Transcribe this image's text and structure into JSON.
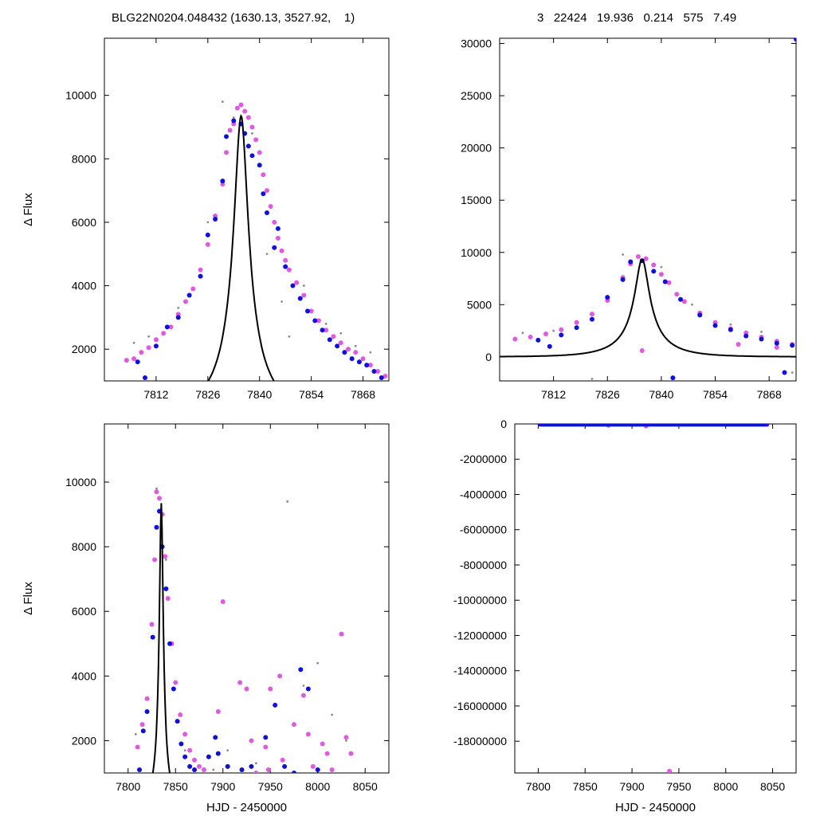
{
  "header": {
    "left": "BLG22N0204.048432 (1630.13, 3527.92,    1)",
    "right": "3   22424   19.936   0.214   575   7.49"
  },
  "colors": {
    "magenta": "#e05ae0",
    "blue": "#1010d8",
    "gray": "#8c8c8c",
    "model": "#000000"
  },
  "model_params": {
    "t0": 7835.0,
    "peak": 9350,
    "tE": 12.0,
    "u0": 0.155,
    "baseline_amp": 0
  },
  "chart_data": [
    {
      "id": "top-left",
      "type": "scatter",
      "title": "",
      "xlabel": "",
      "ylabel": "Δ Flux",
      "xlim": [
        7798,
        7875
      ],
      "ylim": [
        1000,
        11800
      ],
      "xticks": [
        "7812",
        "7826",
        "7840",
        "7854",
        "7868"
      ],
      "yticks": [
        "2000",
        "4000",
        "6000",
        "8000",
        "10000"
      ],
      "series": [
        {
          "color": "magenta",
          "points": [
            [
              7804,
              1650
            ],
            [
              7806,
              1700
            ],
            [
              7808,
              1900
            ],
            [
              7810,
              2050
            ],
            [
              7812,
              2300
            ],
            [
              7814,
              2500
            ],
            [
              7816,
              2700
            ],
            [
              7818,
              3100
            ],
            [
              7820,
              3500
            ],
            [
              7822,
              3900
            ],
            [
              7824,
              4500
            ],
            [
              7826,
              5300
            ],
            [
              7828,
              6200
            ],
            [
              7830,
              7200
            ],
            [
              7831,
              8200
            ],
            [
              7832,
              8900
            ],
            [
              7833,
              9100
            ],
            [
              7834,
              9600
            ],
            [
              7835,
              9700
            ],
            [
              7836,
              9500
            ],
            [
              7837,
              9300
            ],
            [
              7838,
              9000
            ],
            [
              7839,
              8600
            ],
            [
              7840,
              8200
            ],
            [
              7841,
              7500
            ],
            [
              7842,
              7000
            ],
            [
              7843,
              6500
            ],
            [
              7844,
              6000
            ],
            [
              7845,
              5500
            ],
            [
              7846,
              5100
            ],
            [
              7847,
              4800
            ],
            [
              7848,
              4500
            ],
            [
              7850,
              4100
            ],
            [
              7852,
              3700
            ],
            [
              7854,
              3200
            ],
            [
              7856,
              2900
            ],
            [
              7858,
              2600
            ],
            [
              7860,
              2400
            ],
            [
              7862,
              2200
            ],
            [
              7864,
              2000
            ],
            [
              7866,
              1900
            ],
            [
              7868,
              1700
            ],
            [
              7870,
              1500
            ],
            [
              7872,
              1300
            ],
            [
              7874,
              1150
            ]
          ]
        },
        {
          "color": "blue",
          "points": [
            [
              7807,
              1600
            ],
            [
              7809,
              1100
            ],
            [
              7812,
              2100
            ],
            [
              7815,
              2700
            ],
            [
              7818,
              3000
            ],
            [
              7821,
              3700
            ],
            [
              7824,
              4300
            ],
            [
              7826,
              5600
            ],
            [
              7828,
              6100
            ],
            [
              7830,
              7300
            ],
            [
              7831,
              8700
            ],
            [
              7833,
              9200
            ],
            [
              7835,
              9100
            ],
            [
              7836,
              8800
            ],
            [
              7837,
              8400
            ],
            [
              7838,
              8100
            ],
            [
              7840,
              7800
            ],
            [
              7841,
              6900
            ],
            [
              7842,
              6300
            ],
            [
              7844,
              5200
            ],
            [
              7845,
              5800
            ],
            [
              7847,
              4600
            ],
            [
              7849,
              4000
            ],
            [
              7851,
              3600
            ],
            [
              7853,
              3200
            ],
            [
              7855,
              2900
            ],
            [
              7857,
              2600
            ],
            [
              7859,
              2300
            ],
            [
              7861,
              2100
            ],
            [
              7863,
              1900
            ],
            [
              7865,
              1700
            ],
            [
              7867,
              1600
            ],
            [
              7869,
              1500
            ],
            [
              7871,
              1300
            ],
            [
              7873,
              1100
            ]
          ]
        },
        {
          "color": "gray",
          "points": [
            [
              7806,
              2200
            ],
            [
              7810,
              2400
            ],
            [
              7818,
              3300
            ],
            [
              7826,
              6000
            ],
            [
              7830,
              9800
            ],
            [
              7833,
              9300
            ],
            [
              7838,
              8800
            ],
            [
              7842,
              5000
            ],
            [
              7846,
              3500
            ],
            [
              7848,
              2400
            ],
            [
              7852,
              4000
            ],
            [
              7858,
              2800
            ],
            [
              7862,
              2500
            ],
            [
              7866,
              2100
            ],
            [
              7870,
              1900
            ]
          ]
        }
      ]
    },
    {
      "id": "top-right",
      "type": "scatter",
      "title": "",
      "xlabel": "",
      "ylabel": "",
      "xlim": [
        7798,
        7875
      ],
      "ylim": [
        -2300,
        30500
      ],
      "xticks": [
        "7812",
        "7826",
        "7840",
        "7854",
        "7868"
      ],
      "yticks": [
        "0",
        "5000",
        "10000",
        "15000",
        "20000",
        "25000",
        "30000"
      ],
      "series": [
        {
          "color": "magenta",
          "points": [
            [
              7802,
              1700
            ],
            [
              7806,
              1900
            ],
            [
              7810,
              2200
            ],
            [
              7814,
              2600
            ],
            [
              7818,
              3300
            ],
            [
              7822,
              4100
            ],
            [
              7826,
              5400
            ],
            [
              7830,
              7600
            ],
            [
              7832,
              8900
            ],
            [
              7834,
              9600
            ],
            [
              7836,
              9400
            ],
            [
              7838,
              8800
            ],
            [
              7840,
              7900
            ],
            [
              7842,
              7100
            ],
            [
              7844,
              6000
            ],
            [
              7846,
              5300
            ],
            [
              7850,
              4200
            ],
            [
              7854,
              3300
            ],
            [
              7858,
              2700
            ],
            [
              7862,
              2300
            ],
            [
              7866,
              1900
            ],
            [
              7870,
              1500
            ],
            [
              7874,
              1200
            ],
            [
              7835,
              600
            ],
            [
              7860,
              1200
            ],
            [
              7870,
              900
            ]
          ]
        },
        {
          "color": "blue",
          "points": [
            [
              7808,
              1600
            ],
            [
              7811,
              1000
            ],
            [
              7814,
              2100
            ],
            [
              7818,
              2800
            ],
            [
              7822,
              3600
            ],
            [
              7826,
              5700
            ],
            [
              7830,
              7400
            ],
            [
              7832,
              9100
            ],
            [
              7835,
              9200
            ],
            [
              7838,
              8200
            ],
            [
              7841,
              7200
            ],
            [
              7843,
              -2000
            ],
            [
              7845,
              5500
            ],
            [
              7850,
              4000
            ],
            [
              7854,
              3000
            ],
            [
              7858,
              2600
            ],
            [
              7862,
              2000
            ],
            [
              7866,
              1700
            ],
            [
              7870,
              1300
            ],
            [
              7872,
              -1500
            ],
            [
              7874,
              1100
            ]
          ]
        },
        {
          "color": "gray",
          "points": [
            [
              7804,
              2300
            ],
            [
              7812,
              2500
            ],
            [
              7822,
              -2100
            ],
            [
              7830,
              9800
            ],
            [
              7840,
              8600
            ],
            [
              7848,
              5000
            ],
            [
              7858,
              3100
            ],
            [
              7866,
              2400
            ],
            [
              7874,
              -1500
            ]
          ]
        },
        {
          "color": "blue",
          "points": [
            [
              7875,
              30400
            ]
          ]
        }
      ]
    },
    {
      "id": "bottom-left",
      "type": "scatter",
      "title": "",
      "xlabel": "HJD - 2450000",
      "ylabel": "Δ Flux",
      "xlim": [
        7775,
        8075
      ],
      "ylim": [
        1000,
        11800
      ],
      "xticks": [
        "7800",
        "7850",
        "7900",
        "7950",
        "8000",
        "8050"
      ],
      "yticks": [
        "2000",
        "4000",
        "6000",
        "8000",
        "10000"
      ],
      "series": [
        {
          "color": "magenta",
          "points": [
            [
              7810,
              1800
            ],
            [
              7815,
              2500
            ],
            [
              7820,
              3300
            ],
            [
              7825,
              5600
            ],
            [
              7828,
              7600
            ],
            [
              7830,
              9700
            ],
            [
              7833,
              9500
            ],
            [
              7836,
              9000
            ],
            [
              7839,
              7700
            ],
            [
              7842,
              6400
            ],
            [
              7846,
              5000
            ],
            [
              7850,
              3800
            ],
            [
              7855,
              2800
            ],
            [
              7860,
              2200
            ],
            [
              7865,
              1700
            ],
            [
              7870,
              1400
            ],
            [
              7875,
              1200
            ],
            [
              7880,
              1100
            ],
            [
              7895,
              2900
            ],
            [
              7900,
              6300
            ],
            [
              7905,
              1200
            ],
            [
              7918,
              3800
            ],
            [
              7925,
              3600
            ],
            [
              7930,
              2000
            ],
            [
              7935,
              1000
            ],
            [
              7945,
              1800
            ],
            [
              7948,
              1100
            ],
            [
              7950,
              3600
            ],
            [
              7960,
              4000
            ],
            [
              7963,
              1400
            ],
            [
              7975,
              2500
            ],
            [
              7985,
              3400
            ],
            [
              7990,
              2200
            ],
            [
              7995,
              1200
            ],
            [
              8005,
              1900
            ],
            [
              8010,
              1600
            ],
            [
              8015,
              1100
            ],
            [
              8025,
              5300
            ],
            [
              8030,
              2100
            ],
            [
              8035,
              1600
            ]
          ]
        },
        {
          "color": "blue",
          "points": [
            [
              7812,
              1100
            ],
            [
              7816,
              2300
            ],
            [
              7820,
              2900
            ],
            [
              7826,
              5200
            ],
            [
              7830,
              8600
            ],
            [
              7833,
              9100
            ],
            [
              7836,
              8000
            ],
            [
              7840,
              6700
            ],
            [
              7844,
              5000
            ],
            [
              7848,
              3600
            ],
            [
              7852,
              2600
            ],
            [
              7856,
              1900
            ],
            [
              7860,
              1500
            ],
            [
              7865,
              1200
            ],
            [
              7870,
              1100
            ],
            [
              7885,
              1500
            ],
            [
              7892,
              2100
            ],
            [
              7895,
              1600
            ],
            [
              7905,
              1200
            ],
            [
              7920,
              1100
            ],
            [
              7930,
              1200
            ],
            [
              7945,
              2100
            ],
            [
              7955,
              3100
            ],
            [
              7965,
              1200
            ],
            [
              7975,
              1000
            ],
            [
              7982,
              4200
            ],
            [
              7990,
              3600
            ],
            [
              8000,
              1100
            ]
          ]
        },
        {
          "color": "gray",
          "points": [
            [
              7808,
              2200
            ],
            [
              7830,
              9800
            ],
            [
              7840,
              7600
            ],
            [
              7860,
              1700
            ],
            [
              7890,
              1100
            ],
            [
              7905,
              1700
            ],
            [
              7935,
              1300
            ],
            [
              7968,
              9400
            ],
            [
              7985,
              3700
            ],
            [
              8000,
              4400
            ],
            [
              8015,
              2800
            ],
            [
              8030,
              2000
            ]
          ]
        }
      ]
    },
    {
      "id": "bottom-right",
      "type": "scatter",
      "title": "",
      "xlabel": "HJD - 2450000",
      "ylabel": "",
      "xlim": [
        7775,
        8075
      ],
      "ylim": [
        -19800000,
        0
      ],
      "xticks": [
        "7800",
        "7850",
        "7900",
        "7950",
        "8000",
        "8050"
      ],
      "yticks": [
        "0",
        "-2000000",
        "-4000000",
        "-6000000",
        "-8000000",
        "-10000000",
        "-12000000",
        "-14000000",
        "-16000000",
        "-18000000"
      ],
      "series": [
        {
          "color": "magenta",
          "points": [
            [
              7940,
              -19700000
            ],
            [
              7875,
              -80000
            ],
            [
              7915,
              -120000
            ]
          ]
        }
      ]
    }
  ]
}
